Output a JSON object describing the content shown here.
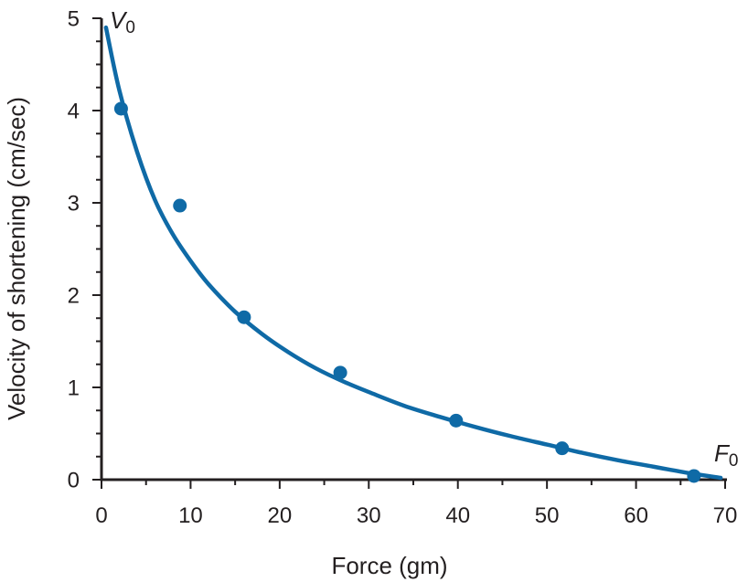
{
  "chart_data": {
    "type": "scatter",
    "title": "",
    "xlabel": "Force (gm)",
    "ylabel": "Velocity of shortening (cm/sec)",
    "xlim": [
      0,
      70
    ],
    "ylim": [
      0,
      5
    ],
    "xticks": [
      0,
      10,
      20,
      30,
      40,
      50,
      60,
      70
    ],
    "yticks": [
      0,
      1,
      2,
      3,
      4,
      5
    ],
    "grid": false,
    "legend": "none",
    "series": [
      {
        "points": [
          {
            "x": 2.2,
            "y": 4.02
          },
          {
            "x": 8.8,
            "y": 2.97
          },
          {
            "x": 16.0,
            "y": 1.76
          },
          {
            "x": 26.8,
            "y": 1.16
          },
          {
            "x": 39.8,
            "y": 0.64
          },
          {
            "x": 51.7,
            "y": 0.34
          },
          {
            "x": 66.5,
            "y": 0.04
          }
        ]
      }
    ],
    "fitted_curve": {
      "x": [
        0.5,
        2,
        4,
        6,
        8,
        10,
        12,
        15,
        18,
        21,
        24,
        27,
        30,
        34,
        38,
        42,
        46,
        50,
        54,
        58,
        62,
        66,
        69.5
      ],
      "y": [
        4.9,
        4.22,
        3.55,
        3.03,
        2.66,
        2.37,
        2.12,
        1.82,
        1.58,
        1.38,
        1.21,
        1.07,
        0.95,
        0.8,
        0.68,
        0.57,
        0.47,
        0.38,
        0.29,
        0.21,
        0.14,
        0.07,
        0.02
      ]
    },
    "annotations": {
      "v0_main": "V",
      "v0_sub": "0",
      "f0_main": "F",
      "f0_sub": "0"
    },
    "colors": {
      "series": "#0f6aa6",
      "axis": "#231f20"
    }
  }
}
